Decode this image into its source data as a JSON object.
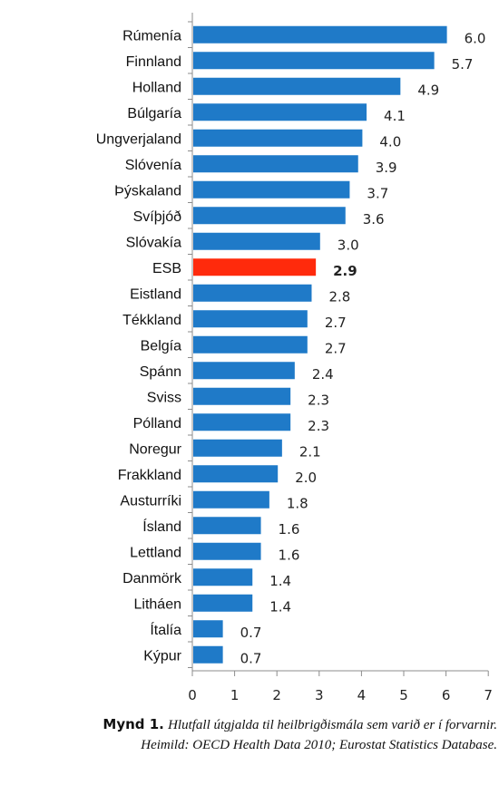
{
  "chart_data": {
    "type": "bar",
    "orientation": "horizontal",
    "categories": [
      "Rúmenía",
      "Finnland",
      "Holland",
      "Búlgaría",
      "Ungverjaland",
      "Slóvenía",
      "Þýskaland",
      "Svíþjóð",
      "Slóvakía",
      "ESB",
      "Eistland",
      "Tékkland",
      "Belgía",
      "Spánn",
      "Sviss",
      "Pólland",
      "Noregur",
      "Frakkland",
      "Austurríki",
      "Ísland",
      "Lettland",
      "Danmörk",
      "Litháen",
      "Ítalía",
      "Kýpur"
    ],
    "values": [
      6.0,
      5.7,
      4.9,
      4.1,
      4.0,
      3.9,
      3.7,
      3.6,
      3.0,
      2.9,
      2.8,
      2.7,
      2.7,
      2.4,
      2.3,
      2.3,
      2.1,
      2.0,
      1.8,
      1.6,
      1.6,
      1.4,
      1.4,
      0.7,
      0.7
    ],
    "value_labels": [
      "6.0",
      "5.7",
      "4.9",
      "4.1",
      "4.0",
      "3.9",
      "3.7",
      "3.6",
      "3.0",
      "2.9",
      "2.8",
      "2.7",
      "2.7",
      "2.4",
      "2.3",
      "2.3",
      "2.1",
      "2.0",
      "1.8",
      "1.6",
      "1.6",
      "1.4",
      "1.4",
      "0.7",
      "0.7"
    ],
    "highlight_category": "ESB",
    "xlim": [
      0,
      7
    ],
    "x_ticks": [
      "0",
      "1",
      "2",
      "3",
      "4",
      "5",
      "6",
      "7"
    ],
    "grid": false,
    "legend": false,
    "colors": {
      "bar": "#1f7ac8",
      "highlight": "#ff2a0c",
      "axis": "#8c8c8c"
    }
  },
  "caption": {
    "lead": "Mynd 1.",
    "line1": "Hlutfall útgjalda til heilbrigðismála sem varið er í forvarnir.",
    "line2": "Heimild: OECD Health Data 2010; Eurostat Statistics Database."
  }
}
